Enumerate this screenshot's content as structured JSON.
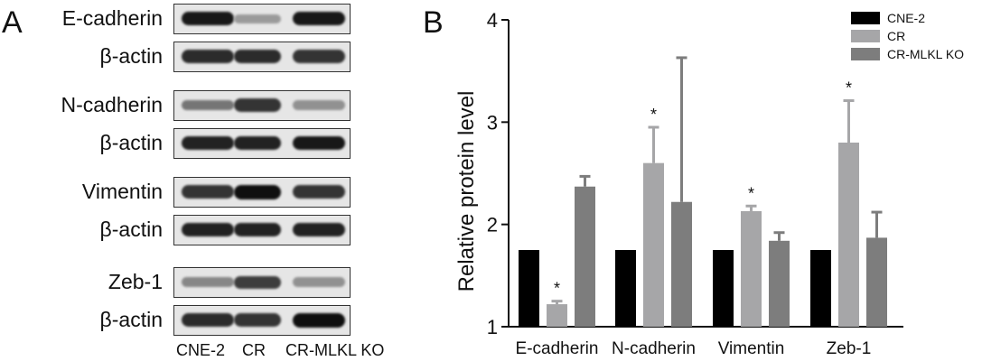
{
  "panel_a": {
    "letter": "A",
    "lanes": [
      "CNE-2",
      "CR",
      "CR-MLKL KO"
    ],
    "blots": [
      {
        "protein": "E-cadherin",
        "intensities": [
          0.95,
          0.25,
          0.95
        ]
      },
      {
        "protein": "β-actin",
        "intensities": [
          0.85,
          0.85,
          0.8
        ]
      },
      {
        "protein": "N-cadherin",
        "intensities": [
          0.45,
          0.8,
          0.3
        ]
      },
      {
        "protein": "β-actin",
        "intensities": [
          0.9,
          0.9,
          0.95
        ]
      },
      {
        "protein": "Vimentin",
        "intensities": [
          0.8,
          1.0,
          0.8
        ]
      },
      {
        "protein": "β-actin",
        "intensities": [
          0.9,
          0.9,
          0.9
        ]
      },
      {
        "protein": "Zeb-1",
        "intensities": [
          0.35,
          0.75,
          0.3
        ]
      },
      {
        "protein": "β-actin",
        "intensities": [
          0.85,
          0.8,
          1.0
        ]
      }
    ]
  },
  "panel_b": {
    "letter": "B",
    "significance_mark": "*"
  },
  "chart_data": {
    "type": "bar",
    "title": "",
    "xlabel": "",
    "ylabel": "Relative protein level",
    "ylim": [
      1,
      4
    ],
    "yticks": [
      1,
      2,
      3,
      4
    ],
    "grid": false,
    "legend_position": "top-right",
    "categories": [
      "E-cadherin",
      "N-cadherin",
      "Vimentin",
      "Zeb-1"
    ],
    "series": [
      {
        "name": "CNE-2",
        "color": "#000000",
        "values": [
          1.75,
          1.75,
          1.75,
          1.75
        ],
        "errors": [
          0,
          0,
          0,
          0
        ]
      },
      {
        "name": "CR",
        "color": "#a6a6a8",
        "values": [
          1.22,
          2.6,
          2.13,
          2.8
        ],
        "errors": [
          0.03,
          0.35,
          0.05,
          0.41
        ]
      },
      {
        "name": "CR-MLKL KO",
        "color": "#7d7d7d",
        "values": [
          2.37,
          2.22,
          1.84,
          1.87
        ],
        "errors": [
          0.1,
          1.41,
          0.08,
          0.25
        ]
      }
    ],
    "significance": [
      {
        "category": "E-cadherin",
        "series": "CR",
        "label": "*"
      },
      {
        "category": "N-cadherin",
        "series": "CR",
        "label": "*"
      },
      {
        "category": "Vimentin",
        "series": "CR",
        "label": "*"
      },
      {
        "category": "Zeb-1",
        "series": "CR",
        "label": "*"
      }
    ]
  }
}
